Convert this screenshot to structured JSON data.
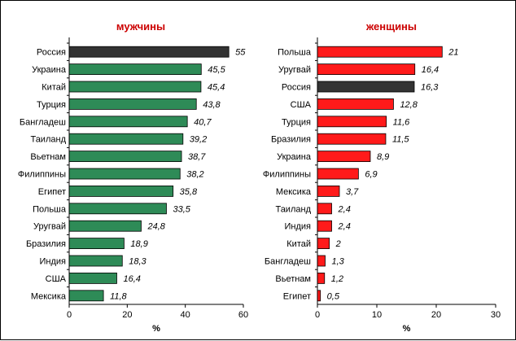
{
  "chart_data": [
    {
      "type": "bar",
      "orientation": "horizontal",
      "title": "мужчины",
      "xlabel": "%",
      "xlim": [
        0,
        60
      ],
      "xticks": [
        0,
        20,
        40,
        60
      ],
      "grid": false,
      "default_color": "#2e8b57",
      "highlight_color": "#333333",
      "highlight": [
        "Россия"
      ],
      "categories": [
        "Россия",
        "Украина",
        "Китай",
        "Турция",
        "Бангладеш",
        "Таиланд",
        "Вьетнам",
        "Филиппины",
        "Египет",
        "Польша",
        "Уругвай",
        "Бразилия",
        "Индия",
        "США",
        "Мексика"
      ],
      "values": [
        55,
        45.5,
        45.4,
        43.8,
        40.7,
        39.2,
        38.7,
        38.2,
        35.8,
        33.5,
        24.8,
        18.9,
        18.3,
        16.4,
        11.8
      ],
      "value_labels": [
        "55",
        "45,5",
        "45,4",
        "43,8",
        "40,7",
        "39,2",
        "38,7",
        "38,2",
        "35,8",
        "33,5",
        "24,8",
        "18,9",
        "18,3",
        "16,4",
        "11,8"
      ]
    },
    {
      "type": "bar",
      "orientation": "horizontal",
      "title": "женщины",
      "xlabel": "%",
      "xlim": [
        0,
        30
      ],
      "xticks": [
        0,
        10,
        20,
        30
      ],
      "grid": false,
      "default_color": "#ff1a1a",
      "highlight_color": "#333333",
      "highlight": [
        "Россия"
      ],
      "categories": [
        "Польша",
        "Уругвай",
        "Россия",
        "США",
        "Турция",
        "Бразилия",
        "Украина",
        "Филиппины",
        "Мексика",
        "Таиланд",
        "Индия",
        "Китай",
        "Бангладеш",
        "Вьетнам",
        "Египет"
      ],
      "values": [
        21,
        16.4,
        16.3,
        12.8,
        11.6,
        11.5,
        8.9,
        6.9,
        3.7,
        2.4,
        2.4,
        2,
        1.3,
        1.2,
        0.5
      ],
      "value_labels": [
        "21",
        "16,4",
        "16,3",
        "12,8",
        "11,6",
        "11,5",
        "8,9",
        "6,9",
        "3,7",
        "2,4",
        "2,4",
        "2",
        "1,3",
        "1,2",
        "0,5"
      ]
    }
  ]
}
